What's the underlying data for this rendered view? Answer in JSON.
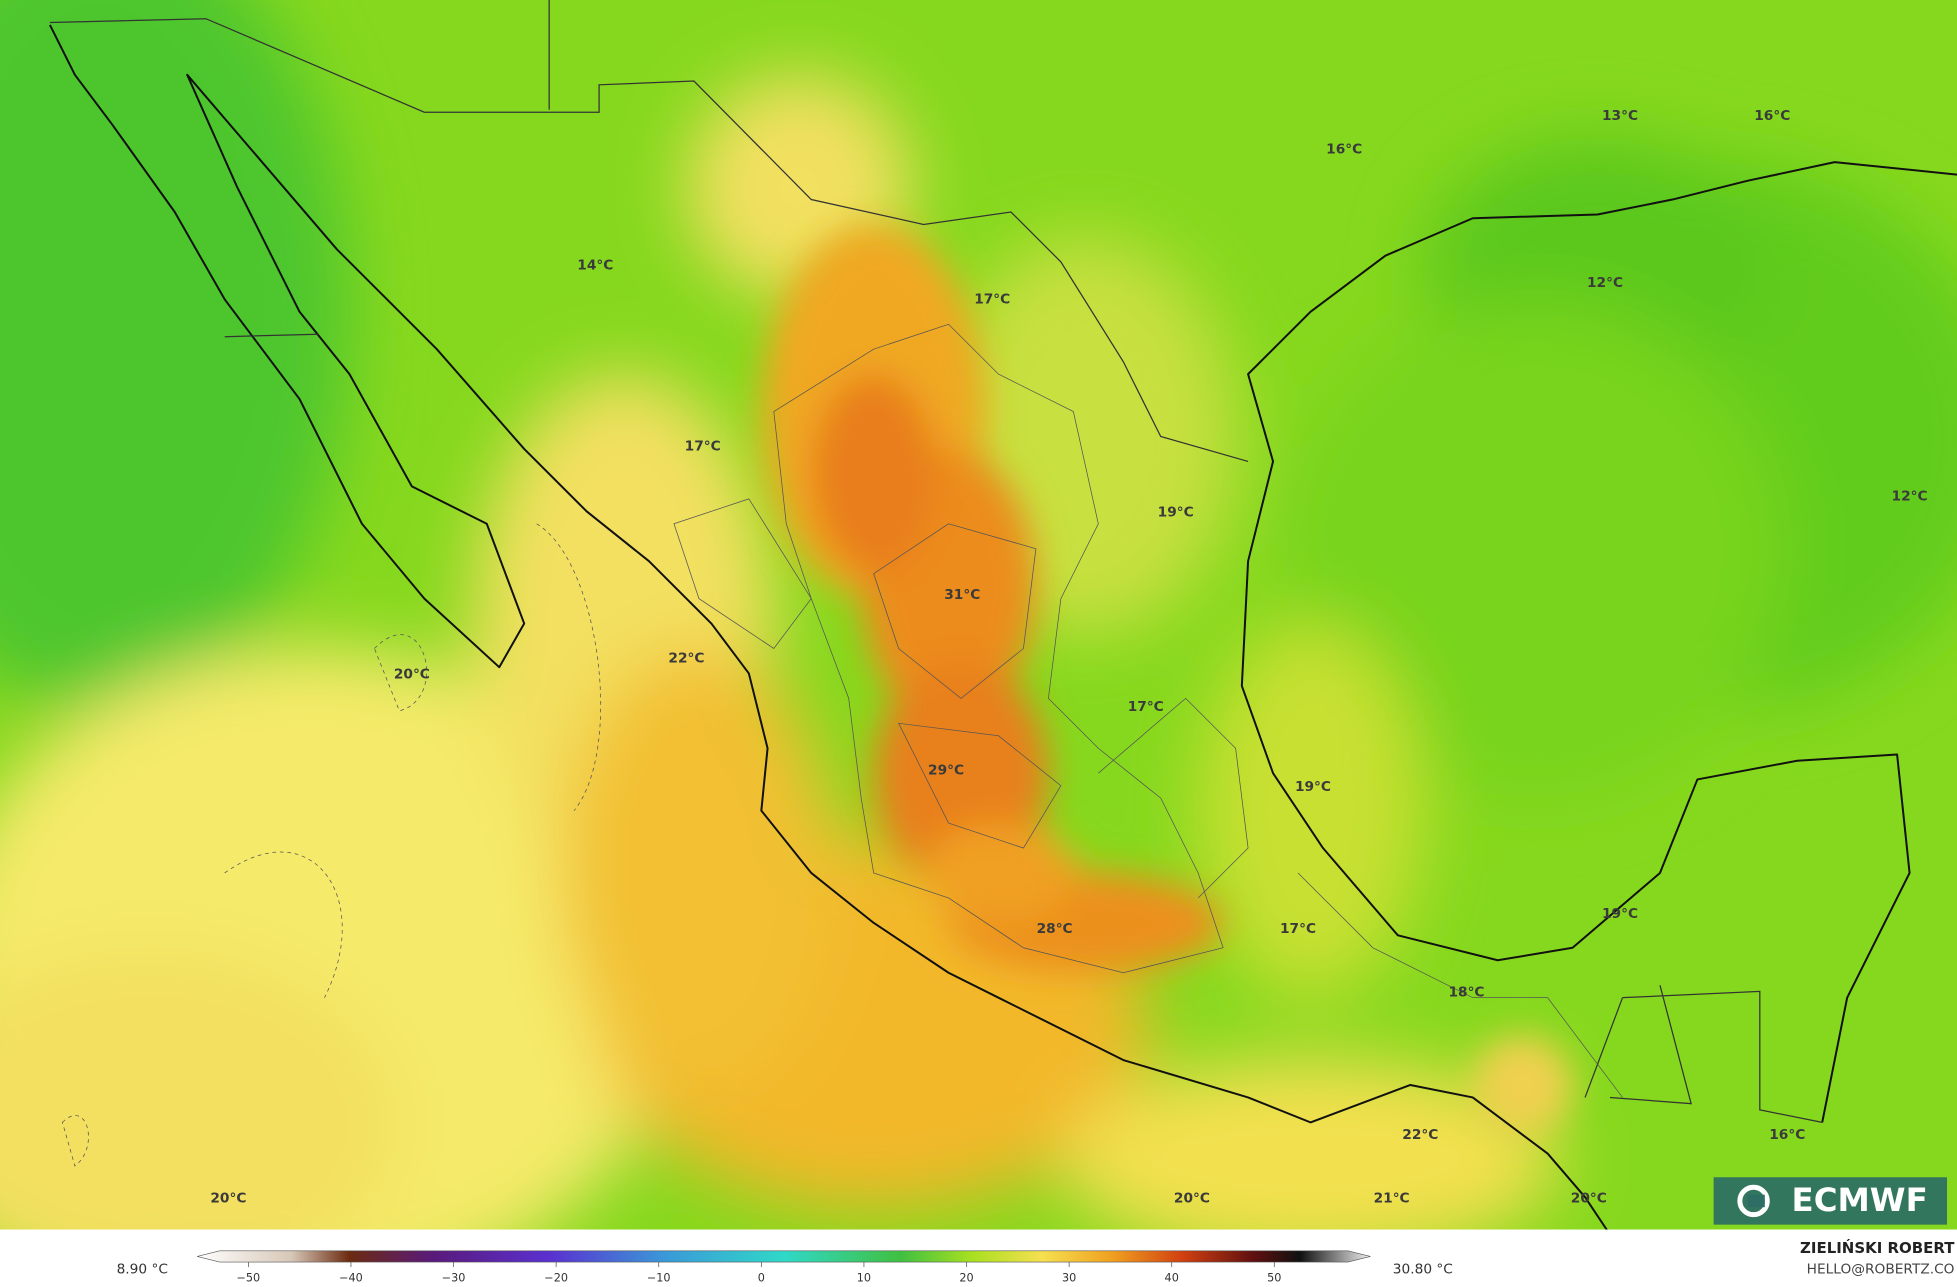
{
  "map": {
    "temperature_labels": [
      "13°C",
      "16°C",
      "16°C",
      "14°C",
      "17°C",
      "12°C",
      "17°C",
      "19°C",
      "12°C",
      "31°C",
      "20°C",
      "22°C",
      "17°C",
      "19°C",
      "29°C",
      "28°C",
      "17°C",
      "19°C",
      "18°C",
      "22°C",
      "16°C",
      "20°C",
      "20°C",
      "21°C",
      "20°C"
    ],
    "legend": {
      "min_label": "8.90 °C",
      "max_label": "30.80 °C",
      "ticks": [
        "−50",
        "−40",
        "−30",
        "−20",
        "−10",
        "0",
        "10",
        "20",
        "30",
        "40",
        "50"
      ]
    },
    "credit": {
      "author": "ZIELIŃSKI ROBERT",
      "contact": "HELLO@ROBERTZ.CO"
    },
    "logo": "ECMWF"
  }
}
